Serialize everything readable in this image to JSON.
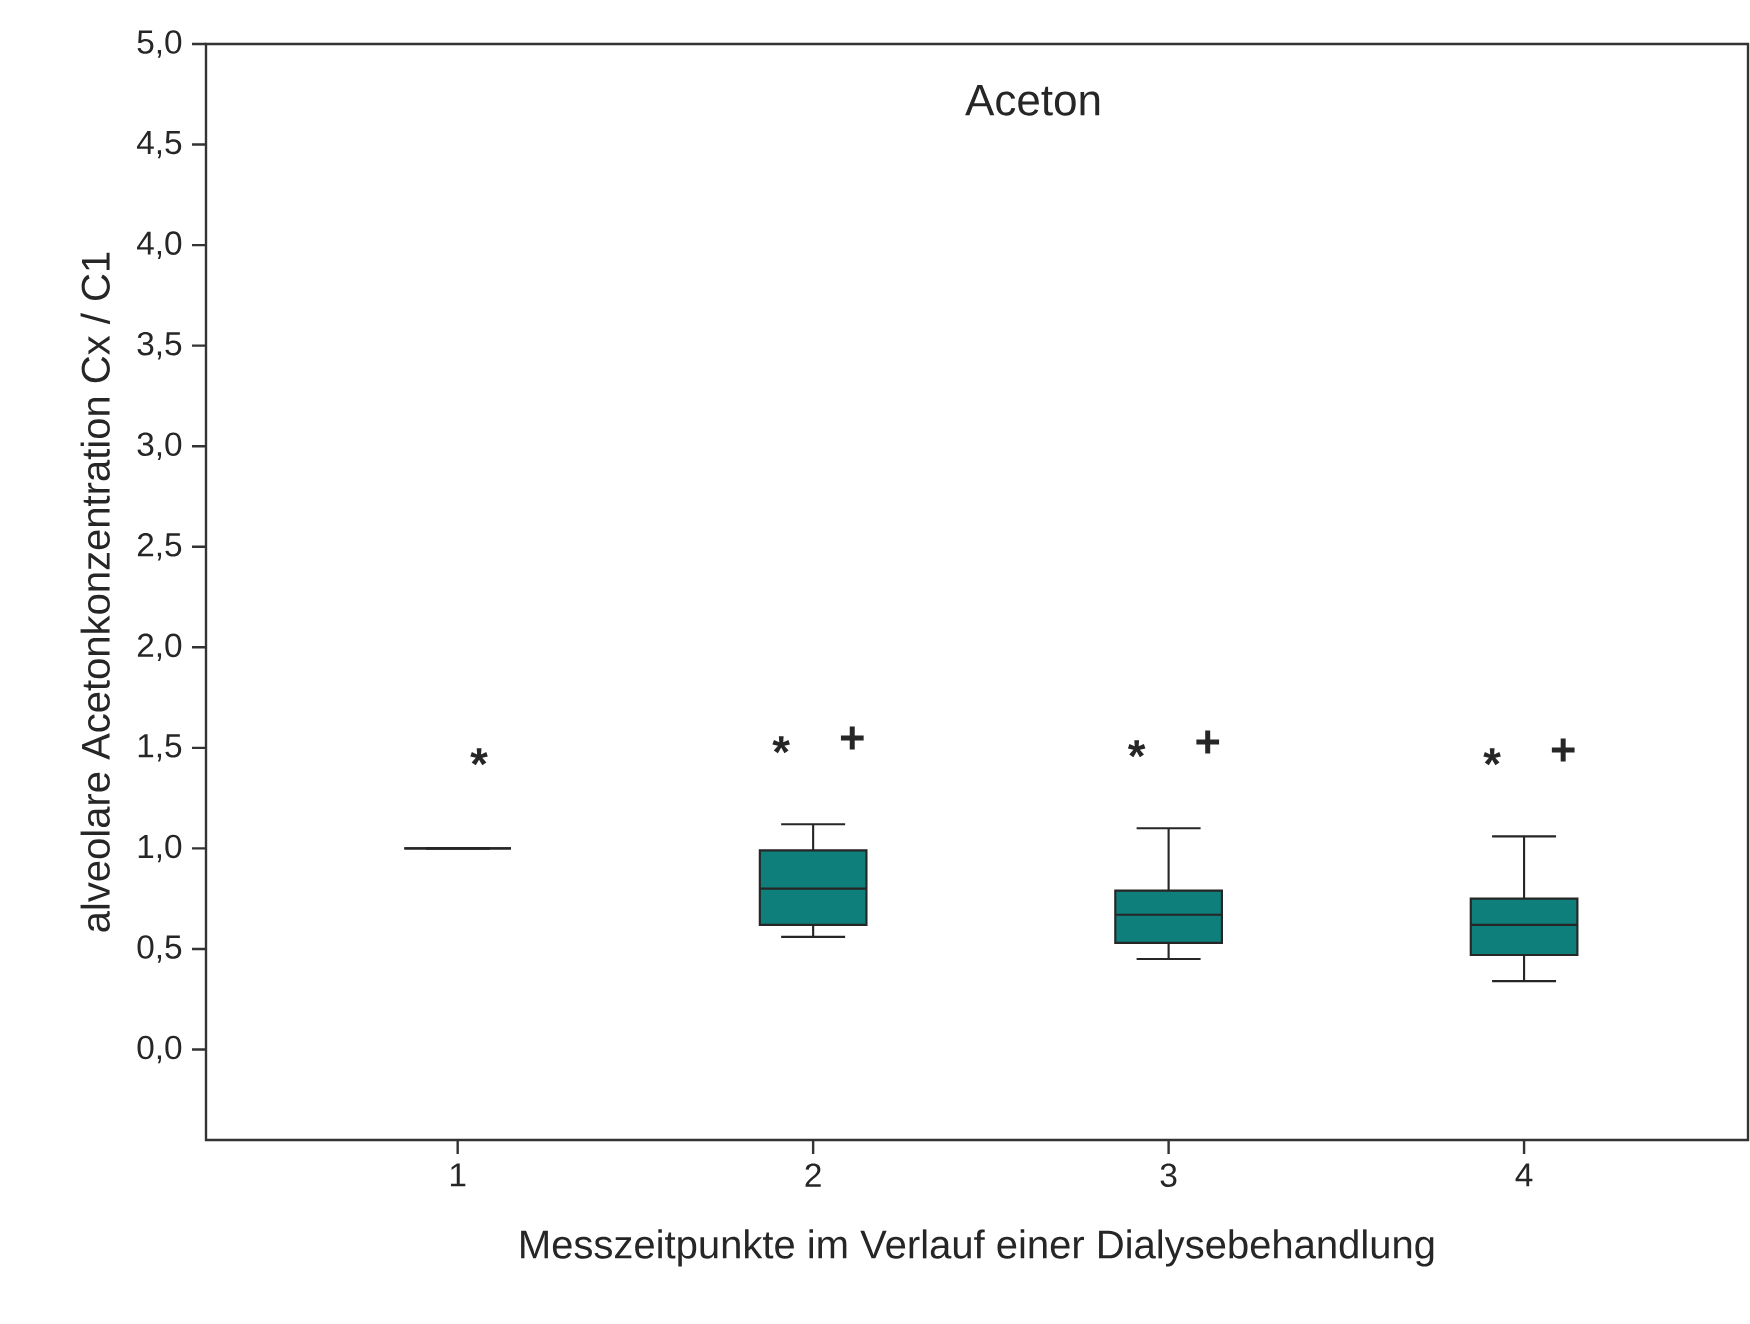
{
  "chart_data": {
    "type": "box",
    "title": "Aceton",
    "xlabel": "Messzeitpunkte im Verlauf einer Dialysebehandlung",
    "ylabel": "alveolare Acetonkonzentration Cx / C1",
    "categories": [
      "1",
      "2",
      "3",
      "4"
    ],
    "colors": [
      "#262626",
      "#0e7f7b",
      "#0e7f7b",
      "#0e7f7b"
    ],
    "boxes": [
      {
        "low": 1.0,
        "q1": 1.0,
        "median": 1.0,
        "q3": 1.0,
        "high": 1.0
      },
      {
        "low": 0.56,
        "q1": 0.62,
        "median": 0.8,
        "q3": 0.99,
        "high": 1.12
      },
      {
        "low": 0.45,
        "q1": 0.53,
        "median": 0.67,
        "q3": 0.79,
        "high": 1.1
      },
      {
        "low": 0.34,
        "q1": 0.47,
        "median": 0.62,
        "q3": 0.75,
        "high": 1.06
      }
    ],
    "ylim": [
      -0.45,
      5.0
    ],
    "yticks": [
      {
        "value": 0,
        "label": "0,0"
      },
      {
        "value": 0.5,
        "label": "0,5"
      },
      {
        "value": 1,
        "label": "1,0"
      },
      {
        "value": 1.5,
        "label": "1,5"
      },
      {
        "value": 2,
        "label": "2,0"
      },
      {
        "value": 2.5,
        "label": "2,5"
      },
      {
        "value": 3,
        "label": "3,0"
      },
      {
        "value": 3.5,
        "label": "3,5"
      },
      {
        "value": 4,
        "label": "4,0"
      },
      {
        "value": 4.5,
        "label": "4,5"
      },
      {
        "value": 5,
        "label": "5,0"
      }
    ],
    "grid": false,
    "annotations": [
      "*",
      "*",
      "+",
      "*",
      "+",
      "*",
      "+"
    ]
  }
}
